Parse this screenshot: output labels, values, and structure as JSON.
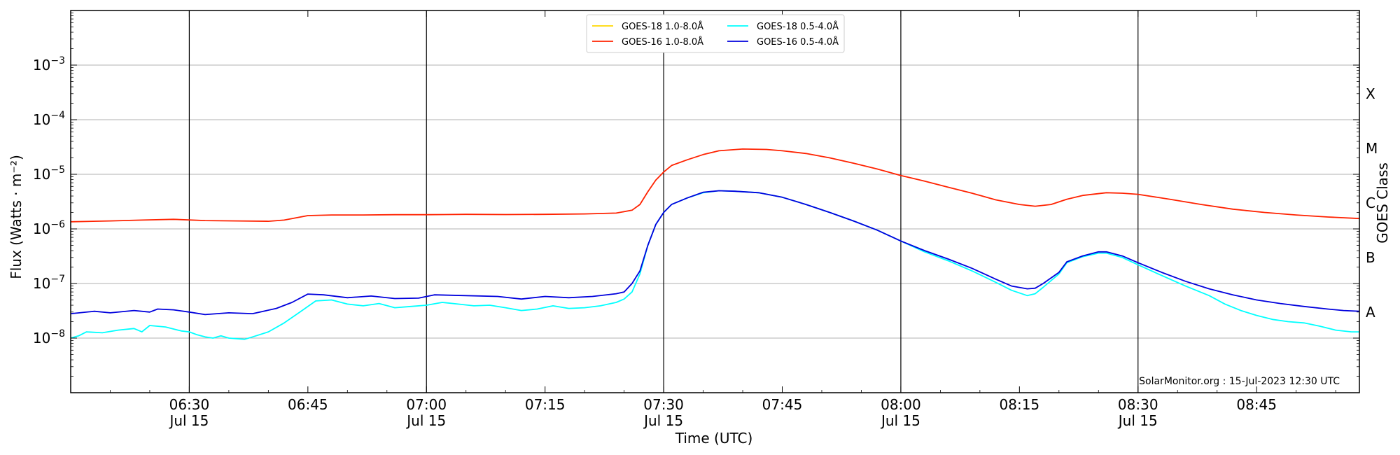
{
  "chart_data": {
    "type": "line",
    "xlabel": "Time (UTC)",
    "ylabel": "Flux (Watts · m⁻²)",
    "ylabel_right": "GOES Class",
    "footer": "SolarMonitor.org : 15-Jul-2023 12:30 UTC",
    "y_scale": "log",
    "ylim": [
      1e-09,
      0.01
    ],
    "xlim": [
      "06:15",
      "08:58"
    ],
    "y_ticks": [
      {
        "value": 1e-08,
        "base": "10",
        "exp": "−8"
      },
      {
        "value": 1e-07,
        "base": "10",
        "exp": "−7"
      },
      {
        "value": 1e-06,
        "base": "10",
        "exp": "−6"
      },
      {
        "value": 1e-05,
        "base": "10",
        "exp": "−5"
      },
      {
        "value": 0.0001,
        "base": "10",
        "exp": "−4"
      },
      {
        "value": 0.001,
        "base": "10",
        "exp": "−3"
      }
    ],
    "x_ticks": [
      {
        "time": "06:30",
        "label": "06:30",
        "sub": "Jul 15"
      },
      {
        "time": "06:45",
        "label": "06:45",
        "sub": ""
      },
      {
        "time": "07:00",
        "label": "07:00",
        "sub": "Jul 15"
      },
      {
        "time": "07:15",
        "label": "07:15",
        "sub": ""
      },
      {
        "time": "07:30",
        "label": "07:30",
        "sub": "Jul 15"
      },
      {
        "time": "07:45",
        "label": "07:45",
        "sub": ""
      },
      {
        "time": "08:00",
        "label": "08:00",
        "sub": "Jul 15"
      },
      {
        "time": "08:15",
        "label": "08:15",
        "sub": ""
      },
      {
        "time": "08:30",
        "label": "08:30",
        "sub": "Jul 15"
      },
      {
        "time": "08:45",
        "label": "08:45",
        "sub": ""
      }
    ],
    "vertical_lines": [
      "06:30",
      "07:00",
      "07:30",
      "08:00",
      "08:30"
    ],
    "goes_classes": [
      {
        "label": "X",
        "value": 0.0003
      },
      {
        "label": "M",
        "value": 3e-05
      },
      {
        "label": "C",
        "value": 3e-06
      },
      {
        "label": "B",
        "value": 3e-07
      },
      {
        "label": "A",
        "value": 3e-08
      }
    ],
    "legend": {
      "position": "top-center",
      "columns": 2
    },
    "grid": "horizontal",
    "series": [
      {
        "name": "GOES-18 1.0-8.0Å",
        "color": "#FFD700",
        "points": []
      },
      {
        "name": "GOES-16 1.0-8.0Å",
        "color": "#FF2200",
        "points": [
          [
            "06:15",
            1.35e-06
          ],
          [
            "06:20",
            1.4e-06
          ],
          [
            "06:24",
            1.45e-06
          ],
          [
            "06:28",
            1.5e-06
          ],
          [
            "06:32",
            1.42e-06
          ],
          [
            "06:36",
            1.4e-06
          ],
          [
            "06:40",
            1.38e-06
          ],
          [
            "06:42",
            1.45e-06
          ],
          [
            "06:45",
            1.75e-06
          ],
          [
            "06:48",
            1.8e-06
          ],
          [
            "06:52",
            1.8e-06
          ],
          [
            "06:56",
            1.82e-06
          ],
          [
            "07:00",
            1.82e-06
          ],
          [
            "07:05",
            1.85e-06
          ],
          [
            "07:10",
            1.83e-06
          ],
          [
            "07:15",
            1.85e-06
          ],
          [
            "07:20",
            1.88e-06
          ],
          [
            "07:24",
            1.95e-06
          ],
          [
            "07:26",
            2.2e-06
          ],
          [
            "07:27",
            2.8e-06
          ],
          [
            "07:28",
            4.8e-06
          ],
          [
            "07:29",
            7.8e-06
          ],
          [
            "07:30",
            1.1e-05
          ],
          [
            "07:31",
            1.45e-05
          ],
          [
            "07:33",
            1.85e-05
          ],
          [
            "07:35",
            2.3e-05
          ],
          [
            "07:37",
            2.7e-05
          ],
          [
            "07:40",
            2.9e-05
          ],
          [
            "07:43",
            2.85e-05
          ],
          [
            "07:45",
            2.7e-05
          ],
          [
            "07:48",
            2.4e-05
          ],
          [
            "07:51",
            2e-05
          ],
          [
            "07:54",
            1.6e-05
          ],
          [
            "07:57",
            1.25e-05
          ],
          [
            "08:00",
            9.5e-06
          ],
          [
            "08:03",
            7.5e-06
          ],
          [
            "08:06",
            5.8e-06
          ],
          [
            "08:09",
            4.5e-06
          ],
          [
            "08:12",
            3.4e-06
          ],
          [
            "08:15",
            2.8e-06
          ],
          [
            "08:17",
            2.6e-06
          ],
          [
            "08:19",
            2.8e-06
          ],
          [
            "08:21",
            3.5e-06
          ],
          [
            "08:23",
            4.1e-06
          ],
          [
            "08:26",
            4.6e-06
          ],
          [
            "08:28",
            4.5e-06
          ],
          [
            "08:30",
            4.3e-06
          ],
          [
            "08:34",
            3.5e-06
          ],
          [
            "08:38",
            2.8e-06
          ],
          [
            "08:42",
            2.3e-06
          ],
          [
            "08:46",
            2e-06
          ],
          [
            "08:50",
            1.8e-06
          ],
          [
            "08:54",
            1.65e-06
          ],
          [
            "08:58",
            1.55e-06
          ]
        ]
      },
      {
        "name": "GOES-18 0.5-4.0Å",
        "color": "#00FFFF",
        "points": [
          [
            "06:15",
            1e-08
          ],
          [
            "06:16",
            1.1e-08
          ],
          [
            "06:17",
            1.3e-08
          ],
          [
            "06:19",
            1.25e-08
          ],
          [
            "06:21",
            1.4e-08
          ],
          [
            "06:23",
            1.5e-08
          ],
          [
            "06:24",
            1.3e-08
          ],
          [
            "06:25",
            1.7e-08
          ],
          [
            "06:27",
            1.6e-08
          ],
          [
            "06:29",
            1.35e-08
          ],
          [
            "06:30",
            1.3e-08
          ],
          [
            "06:31",
            1.15e-08
          ],
          [
            "06:32",
            1.05e-08
          ],
          [
            "06:33",
            1e-08
          ],
          [
            "06:34",
            1.1e-08
          ],
          [
            "06:35",
            1e-08
          ],
          [
            "06:37",
            9.5e-09
          ],
          [
            "06:38",
            1.05e-08
          ],
          [
            "06:40",
            1.3e-08
          ],
          [
            "06:42",
            1.9e-08
          ],
          [
            "06:44",
            3e-08
          ],
          [
            "06:46",
            4.8e-08
          ],
          [
            "06:48",
            5e-08
          ],
          [
            "06:50",
            4.2e-08
          ],
          [
            "06:52",
            3.9e-08
          ],
          [
            "06:54",
            4.3e-08
          ],
          [
            "06:56",
            3.6e-08
          ],
          [
            "06:58",
            3.8e-08
          ],
          [
            "07:00",
            4e-08
          ],
          [
            "07:02",
            4.5e-08
          ],
          [
            "07:04",
            4.2e-08
          ],
          [
            "07:06",
            3.9e-08
          ],
          [
            "07:08",
            4e-08
          ],
          [
            "07:10",
            3.6e-08
          ],
          [
            "07:12",
            3.2e-08
          ],
          [
            "07:14",
            3.4e-08
          ],
          [
            "07:16",
            3.9e-08
          ],
          [
            "07:18",
            3.5e-08
          ],
          [
            "07:20",
            3.6e-08
          ],
          [
            "07:22",
            3.9e-08
          ],
          [
            "07:24",
            4.5e-08
          ],
          [
            "07:25",
            5.2e-08
          ],
          [
            "07:26",
            7e-08
          ],
          [
            "07:27",
            1.5e-07
          ],
          [
            "07:28",
            5e-07
          ],
          [
            "07:29",
            1.2e-06
          ],
          [
            "07:30",
            2e-06
          ],
          [
            "07:31",
            2.8e-06
          ],
          [
            "07:33",
            3.7e-06
          ],
          [
            "07:35",
            4.6e-06
          ],
          [
            "07:37",
            5e-06
          ],
          [
            "07:39",
            4.9e-06
          ],
          [
            "07:42",
            4.6e-06
          ],
          [
            "07:45",
            3.8e-06
          ],
          [
            "07:48",
            2.8e-06
          ],
          [
            "07:51",
            2e-06
          ],
          [
            "07:54",
            1.4e-06
          ],
          [
            "07:57",
            9.5e-07
          ],
          [
            "08:00",
            6e-07
          ],
          [
            "08:03",
            3.8e-07
          ],
          [
            "08:06",
            2.6e-07
          ],
          [
            "08:09",
            1.7e-07
          ],
          [
            "08:12",
            1.05e-07
          ],
          [
            "08:14",
            7.5e-08
          ],
          [
            "08:16",
            6e-08
          ],
          [
            "08:17",
            6.5e-08
          ],
          [
            "08:18",
            8.5e-08
          ],
          [
            "08:20",
            1.5e-07
          ],
          [
            "08:21",
            2.4e-07
          ],
          [
            "08:23",
            3.1e-07
          ],
          [
            "08:25",
            3.6e-07
          ],
          [
            "08:26",
            3.6e-07
          ],
          [
            "08:28",
            3e-07
          ],
          [
            "08:30",
            2.2e-07
          ],
          [
            "08:33",
            1.4e-07
          ],
          [
            "08:36",
            9e-08
          ],
          [
            "08:39",
            6e-08
          ],
          [
            "08:41",
            4.2e-08
          ],
          [
            "08:43",
            3.2e-08
          ],
          [
            "08:45",
            2.6e-08
          ],
          [
            "08:47",
            2.2e-08
          ],
          [
            "08:49",
            2e-08
          ],
          [
            "08:51",
            1.9e-08
          ],
          [
            "08:53",
            1.65e-08
          ],
          [
            "08:55",
            1.4e-08
          ],
          [
            "08:57",
            1.3e-08
          ],
          [
            "08:58",
            1.3e-08
          ]
        ]
      },
      {
        "name": "GOES-16 0.5-4.0Å",
        "color": "#0000DD",
        "points": [
          [
            "06:15",
            2.8e-08
          ],
          [
            "06:18",
            3.1e-08
          ],
          [
            "06:20",
            2.9e-08
          ],
          [
            "06:23",
            3.2e-08
          ],
          [
            "06:25",
            3e-08
          ],
          [
            "06:26",
            3.4e-08
          ],
          [
            "06:28",
            3.3e-08
          ],
          [
            "06:30",
            3e-08
          ],
          [
            "06:32",
            2.7e-08
          ],
          [
            "06:35",
            2.9e-08
          ],
          [
            "06:38",
            2.8e-08
          ],
          [
            "06:41",
            3.5e-08
          ],
          [
            "06:43",
            4.5e-08
          ],
          [
            "06:45",
            6.4e-08
          ],
          [
            "06:47",
            6.2e-08
          ],
          [
            "06:50",
            5.5e-08
          ],
          [
            "06:53",
            5.9e-08
          ],
          [
            "06:56",
            5.3e-08
          ],
          [
            "06:59",
            5.4e-08
          ],
          [
            "07:01",
            6.2e-08
          ],
          [
            "07:05",
            6e-08
          ],
          [
            "07:09",
            5.8e-08
          ],
          [
            "07:12",
            5.2e-08
          ],
          [
            "07:15",
            5.8e-08
          ],
          [
            "07:18",
            5.5e-08
          ],
          [
            "07:21",
            5.8e-08
          ],
          [
            "07:24",
            6.5e-08
          ],
          [
            "07:25",
            7e-08
          ],
          [
            "07:26",
            1e-07
          ],
          [
            "07:27",
            1.7e-07
          ],
          [
            "07:28",
            5e-07
          ],
          [
            "07:29",
            1.2e-06
          ],
          [
            "07:30",
            2e-06
          ],
          [
            "07:31",
            2.8e-06
          ],
          [
            "07:33",
            3.7e-06
          ],
          [
            "07:35",
            4.7e-06
          ],
          [
            "07:37",
            5e-06
          ],
          [
            "07:39",
            4.9e-06
          ],
          [
            "07:42",
            4.6e-06
          ],
          [
            "07:45",
            3.8e-06
          ],
          [
            "07:48",
            2.8e-06
          ],
          [
            "07:51",
            2e-06
          ],
          [
            "07:54",
            1.4e-06
          ],
          [
            "07:57",
            9.5e-07
          ],
          [
            "08:00",
            6e-07
          ],
          [
            "08:03",
            4e-07
          ],
          [
            "08:06",
            2.8e-07
          ],
          [
            "08:09",
            1.9e-07
          ],
          [
            "08:12",
            1.2e-07
          ],
          [
            "08:14",
            9e-08
          ],
          [
            "08:16",
            8e-08
          ],
          [
            "08:17",
            8.2e-08
          ],
          [
            "08:18",
            1e-07
          ],
          [
            "08:20",
            1.6e-07
          ],
          [
            "08:21",
            2.5e-07
          ],
          [
            "08:23",
            3.2e-07
          ],
          [
            "08:25",
            3.8e-07
          ],
          [
            "08:26",
            3.8e-07
          ],
          [
            "08:28",
            3.2e-07
          ],
          [
            "08:30",
            2.4e-07
          ],
          [
            "08:33",
            1.6e-07
          ],
          [
            "08:36",
            1.1e-07
          ],
          [
            "08:39",
            8e-08
          ],
          [
            "08:42",
            6.2e-08
          ],
          [
            "08:45",
            5e-08
          ],
          [
            "08:48",
            4.3e-08
          ],
          [
            "08:51",
            3.8e-08
          ],
          [
            "08:54",
            3.4e-08
          ],
          [
            "08:56",
            3.2e-08
          ],
          [
            "08:58",
            3.1e-08
          ]
        ]
      }
    ]
  }
}
